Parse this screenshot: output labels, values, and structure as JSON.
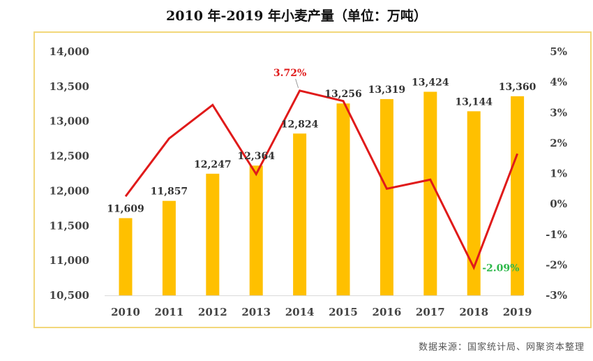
{
  "title": "2010 年-2019 年小麦产量（单位：万吨）",
  "source": "数据来源：国家统计局、网聚资本整理",
  "colors": {
    "bar": "#FFC000",
    "line": "#E01A1A",
    "max_label": "#E01A1A",
    "min_label": "#2DB84A",
    "border": "#F2D77A"
  },
  "chart_data": {
    "type": "bar",
    "categories": [
      "2010",
      "2011",
      "2012",
      "2013",
      "2014",
      "2015",
      "2016",
      "2017",
      "2018",
      "2019"
    ],
    "series": [
      {
        "type": "bar",
        "axis": "left",
        "values": [
          11609,
          11857,
          12247,
          12364,
          12824,
          13256,
          13319,
          13424,
          13144,
          13360
        ],
        "data_labels": [
          "11,609",
          "11,857",
          "12,247",
          "12,364",
          "12,824",
          "13,256",
          "13,319",
          "13,424",
          "13,144",
          "13,360"
        ]
      },
      {
        "type": "line",
        "axis": "right",
        "values": [
          0.25,
          2.15,
          3.25,
          0.98,
          3.72,
          3.38,
          0.5,
          0.8,
          -2.09,
          1.65
        ]
      }
    ],
    "y_left": {
      "ylim": [
        10500,
        14000
      ],
      "ticks": [
        "10,500",
        "11,000",
        "11,500",
        "12,000",
        "12,500",
        "13,000",
        "13,500",
        "14,000"
      ],
      "tick_values": [
        10500,
        11000,
        11500,
        12000,
        12500,
        13000,
        13500,
        14000
      ]
    },
    "y_right": {
      "ylim": [
        -3,
        5
      ],
      "ticks": [
        "-3%",
        "-2%",
        "-1%",
        "0%",
        "1%",
        "2%",
        "3%",
        "4%",
        "5%"
      ],
      "tick_values": [
        -3,
        -2,
        -1,
        0,
        1,
        2,
        3,
        4,
        5
      ]
    },
    "annotations": [
      {
        "text": "3.72%",
        "category": "2014",
        "kind": "max"
      },
      {
        "text": "-2.09%",
        "category": "2018",
        "kind": "min"
      }
    ],
    "grid": false,
    "legend": "none"
  }
}
